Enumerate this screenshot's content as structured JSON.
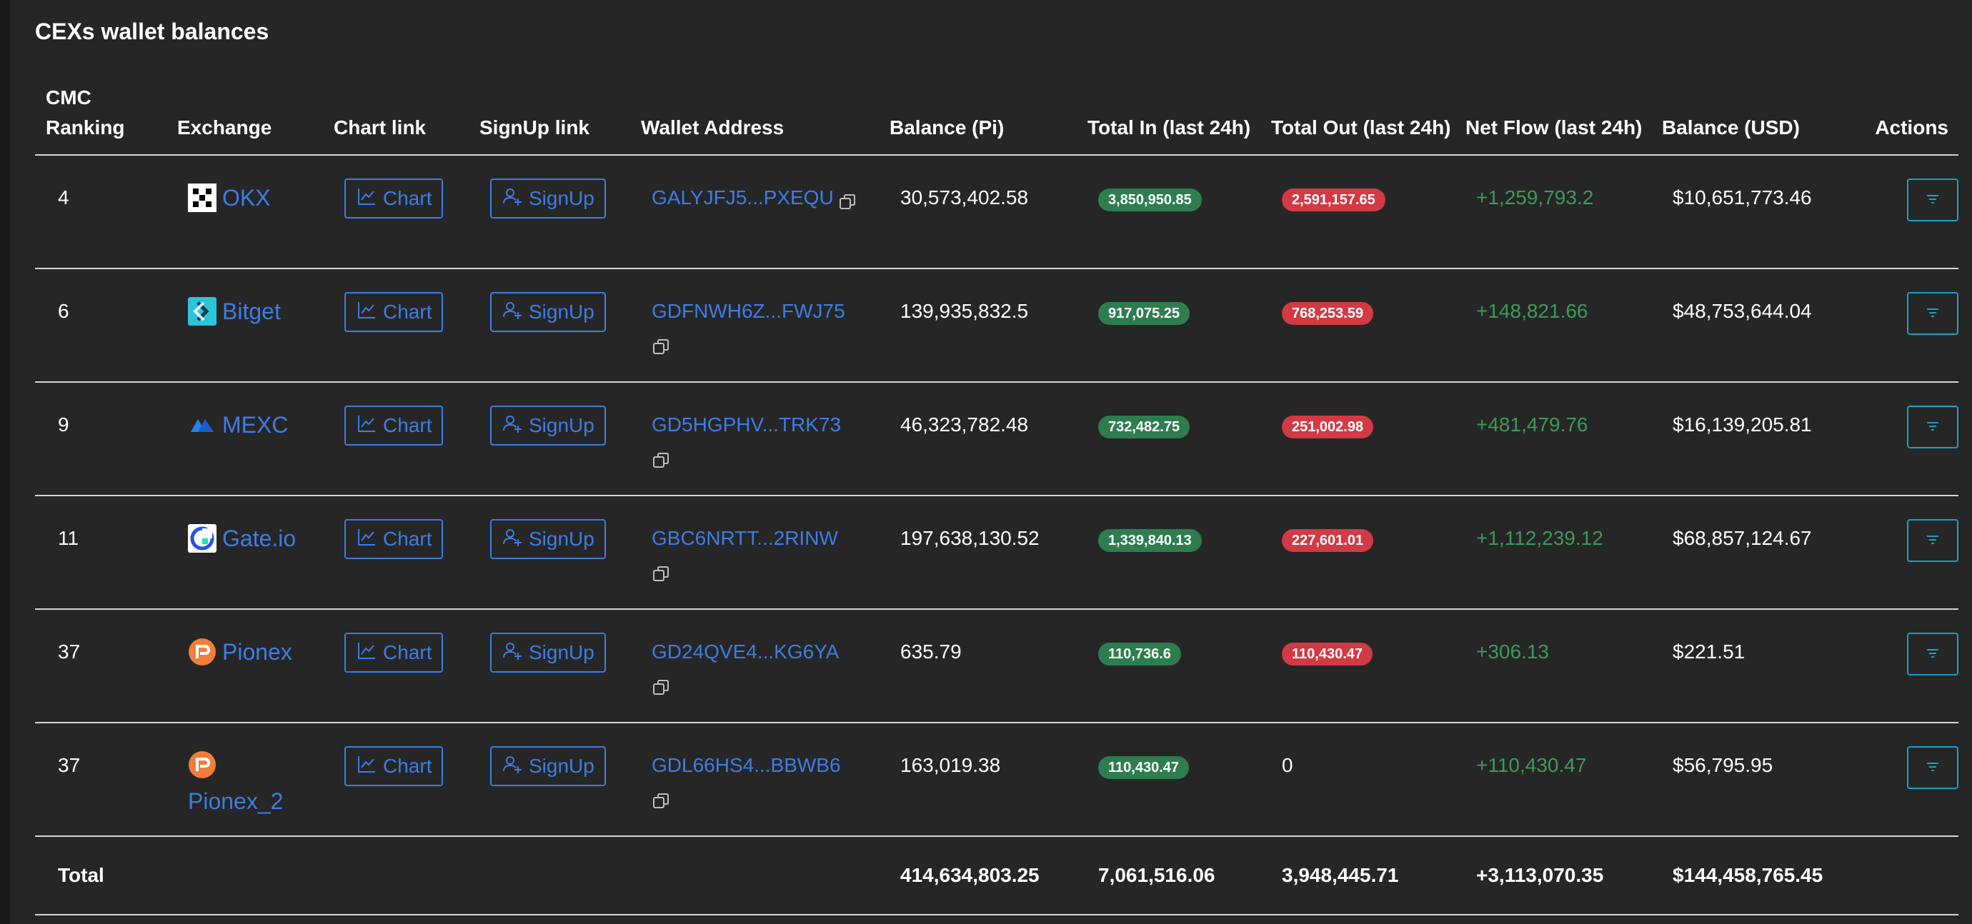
{
  "title": "CEXs wallet balances",
  "columns": {
    "rank": "CMC Ranking",
    "exchange": "Exchange",
    "chart": "Chart link",
    "signup": "SignUp link",
    "wallet": "Wallet Address",
    "balance_pi": "Balance (Pi)",
    "total_in": "Total In (last 24h)",
    "total_out": "Total Out (last 24h)",
    "net_flow": "Net Flow (last 24h)",
    "balance_usd": "Balance (USD)",
    "actions": "Actions"
  },
  "buttons": {
    "chart": "Chart",
    "signup": "SignUp"
  },
  "rows": [
    {
      "rank": "4",
      "exchange": "OKX",
      "logo": "okx-logo",
      "wallet": "GALYJFJ5...PXEQU",
      "balance_pi": "30,573,402.58",
      "total_in": "3,850,950.85",
      "total_out": "2,591,157.65",
      "net_flow": "+1,259,793.2",
      "balance_usd": "$10,651,773.46"
    },
    {
      "rank": "6",
      "exchange": "Bitget",
      "logo": "bitget-logo",
      "wallet": "GDFNWH6Z...FWJ75",
      "balance_pi": "139,935,832.5",
      "total_in": "917,075.25",
      "total_out": "768,253.59",
      "net_flow": "+148,821.66",
      "balance_usd": "$48,753,644.04"
    },
    {
      "rank": "9",
      "exchange": "MEXC",
      "logo": "mexc-logo",
      "wallet": "GD5HGPHV...TRK73",
      "balance_pi": "46,323,782.48",
      "total_in": "732,482.75",
      "total_out": "251,002.98",
      "net_flow": "+481,479.76",
      "balance_usd": "$16,139,205.81"
    },
    {
      "rank": "11",
      "exchange": "Gate.io",
      "logo": "gateio-logo",
      "wallet": "GBC6NRTT...2RINW",
      "balance_pi": "197,638,130.52",
      "total_in": "1,339,840.13",
      "total_out": "227,601.01",
      "net_flow": "+1,112,239.12",
      "balance_usd": "$68,857,124.67"
    },
    {
      "rank": "37",
      "exchange": "Pionex",
      "logo": "pionex-logo",
      "wallet": "GD24QVE4...KG6YA",
      "balance_pi": "635.79",
      "total_in": "110,736.6",
      "total_out": "110,430.47",
      "net_flow": "+306.13",
      "balance_usd": "$221.51"
    },
    {
      "rank": "37",
      "exchange": "Pionex_2",
      "logo": "pionex-logo",
      "wallet": "GDL66HS4...BBWB6",
      "balance_pi": "163,019.38",
      "total_in": "110,430.47",
      "total_out": "0",
      "net_flow": "+110,430.47",
      "balance_usd": "$56,795.95"
    }
  ],
  "totals": {
    "label": "Total",
    "balance_pi": "414,634,803.25",
    "total_in": "7,061,516.06",
    "total_out": "3,948,445.71",
    "net_flow": "+3,113,070.35",
    "balance_usd": "$144,458,765.45"
  },
  "colors": {
    "background": "#262626",
    "link": "#3d7de6",
    "in_pill": "#2e7d4f",
    "out_pill": "#d23a44",
    "net_flow": "#3e9a5a",
    "action_border": "#1aa0c8"
  }
}
